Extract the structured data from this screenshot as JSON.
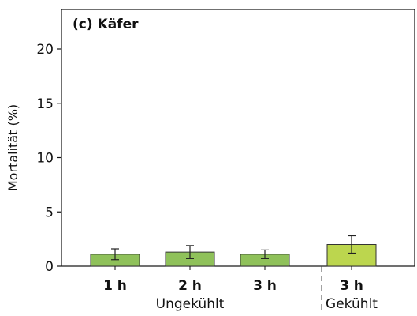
{
  "chart_data": {
    "type": "bar",
    "title": "(c) Käfer",
    "ylabel": "Mortalität (%)",
    "xlabel": "",
    "ylim": [
      0,
      22
    ],
    "yticks": [
      "0",
      "5",
      "10",
      "15",
      "20"
    ],
    "categories": [
      "1 h",
      "2 h",
      "3 h",
      "3 h"
    ],
    "groups": [
      {
        "label": "Ungekühlt",
        "categories": [
          "1 h",
          "2 h",
          "3 h"
        ]
      },
      {
        "label": "Gekühlt",
        "categories": [
          "3 h"
        ]
      }
    ],
    "values": [
      1.1,
      1.3,
      1.1,
      2.0
    ],
    "errors": [
      0.5,
      0.6,
      0.4,
      0.8
    ],
    "colors": [
      "#8fc15a",
      "#8fc15a",
      "#8fc15a",
      "#bcd64e"
    ],
    "grid": false,
    "legend": "none"
  }
}
